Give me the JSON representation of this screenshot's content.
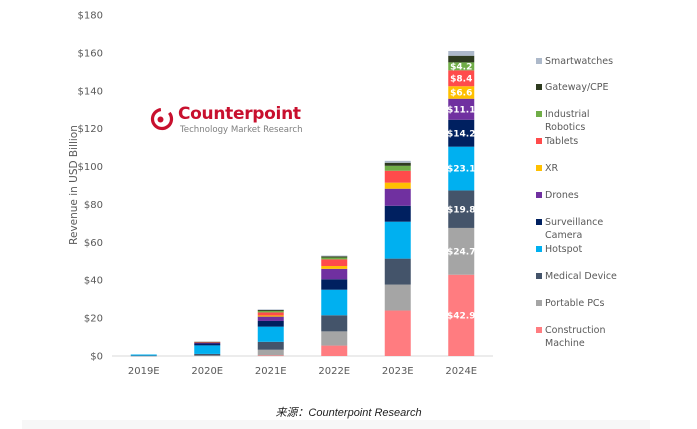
{
  "chart_data": {
    "type": "bar",
    "stacked": true,
    "title": "",
    "xlabel": "",
    "ylabel": "Revenue in USD Billion",
    "ylim": [
      0,
      180
    ],
    "yticks": [
      0,
      20,
      40,
      60,
      80,
      100,
      120,
      140,
      160,
      180
    ],
    "ytick_labels": [
      "$0",
      "$20",
      "$40",
      "$60",
      "$80",
      "$100",
      "$120",
      "$140",
      "$160",
      "$180"
    ],
    "grid": false,
    "legend_position": "right",
    "categories": [
      "2019E",
      "2020E",
      "2021E",
      "2022E",
      "2023E",
      "2024E"
    ],
    "series": [
      {
        "name": "Construction Machine",
        "color": "#ff7c80",
        "values": [
          0,
          0,
          0.3,
          5.5,
          24.0,
          42.9
        ],
        "labels": [
          null,
          null,
          null,
          null,
          null,
          "$42.9"
        ]
      },
      {
        "name": "Portable PCs",
        "color": "#a5a5a5",
        "values": [
          0,
          0.3,
          3.0,
          7.5,
          13.7,
          24.7
        ],
        "labels": [
          null,
          null,
          null,
          null,
          null,
          "$24.7"
        ]
      },
      {
        "name": "Medical Device",
        "color": "#44546a",
        "values": [
          0.2,
          0.8,
          4.2,
          8.5,
          13.7,
          19.8
        ],
        "labels": [
          null,
          null,
          null,
          null,
          null,
          "$19.8"
        ]
      },
      {
        "name": "Hotspot",
        "color": "#00b0f0",
        "values": [
          0.6,
          4.5,
          8.0,
          13.5,
          19.5,
          23.1
        ],
        "labels": [
          null,
          null,
          null,
          null,
          null,
          "$23.1"
        ]
      },
      {
        "name": "Surveillance Camera",
        "color": "#002060",
        "values": [
          0,
          1.0,
          3.0,
          5.5,
          8.4,
          14.2
        ],
        "labels": [
          null,
          null,
          null,
          null,
          null,
          "$14.2"
        ]
      },
      {
        "name": "Drones",
        "color": "#7030a0",
        "values": [
          0,
          0.3,
          2.3,
          5.5,
          9.0,
          11.1
        ],
        "labels": [
          null,
          null,
          null,
          null,
          null,
          "$11.1"
        ]
      },
      {
        "name": "XR",
        "color": "#ffc000",
        "values": [
          0,
          0,
          0.6,
          1.5,
          3.2,
          6.6
        ],
        "labels": [
          null,
          null,
          null,
          null,
          null,
          "$6.6"
        ]
      },
      {
        "name": "Tablets",
        "color": "#ff4b4b",
        "values": [
          0,
          0.4,
          1.6,
          3.5,
          6.3,
          8.4
        ],
        "labels": [
          null,
          null,
          null,
          null,
          null,
          "$8.4"
        ]
      },
      {
        "name": "Industrial Robotics",
        "color": "#70ad47",
        "values": [
          0,
          0,
          0.8,
          1.0,
          2.6,
          4.2
        ],
        "labels": [
          null,
          null,
          null,
          null,
          null,
          "$4.2"
        ]
      },
      {
        "name": "Gateway/CPE",
        "color": "#2e3b1f",
        "values": [
          0,
          0.2,
          0.5,
          0.6,
          1.6,
          3.5
        ],
        "labels": [
          null,
          null,
          null,
          null,
          null,
          null
        ]
      },
      {
        "name": "Smartwatches",
        "color": "#adb9ca",
        "values": [
          0,
          0,
          0.3,
          0.4,
          1.0,
          2.5
        ],
        "labels": [
          null,
          null,
          null,
          null,
          null,
          null
        ]
      }
    ],
    "legend": [
      {
        "label_lines": [
          "Smartwatches"
        ],
        "series": "Smartwatches"
      },
      {
        "label_lines": [
          "Gateway/CPE"
        ],
        "series": "Gateway/CPE"
      },
      {
        "label_lines": [
          "Industrial",
          "Robotics"
        ],
        "series": "Industrial Robotics"
      },
      {
        "label_lines": [
          "Tablets"
        ],
        "series": "Tablets"
      },
      {
        "label_lines": [
          "XR"
        ],
        "series": "XR"
      },
      {
        "label_lines": [
          "Drones"
        ],
        "series": "Drones"
      },
      {
        "label_lines": [
          "Surveillance",
          "Camera"
        ],
        "series": "Surveillance Camera"
      },
      {
        "label_lines": [
          "Hotspot"
        ],
        "series": "Hotspot"
      },
      {
        "label_lines": [
          "Medical Device"
        ],
        "series": "Medical Device"
      },
      {
        "label_lines": [
          "Portable PCs"
        ],
        "series": "Portable PCs"
      },
      {
        "label_lines": [
          "Construction",
          "Machine"
        ],
        "series": "Construction Machine"
      }
    ]
  },
  "logo": {
    "brand": "Counterpoint",
    "tagline": "Technology Market Research",
    "color": "#c8102e"
  },
  "source": "来源：Counterpoint Research"
}
